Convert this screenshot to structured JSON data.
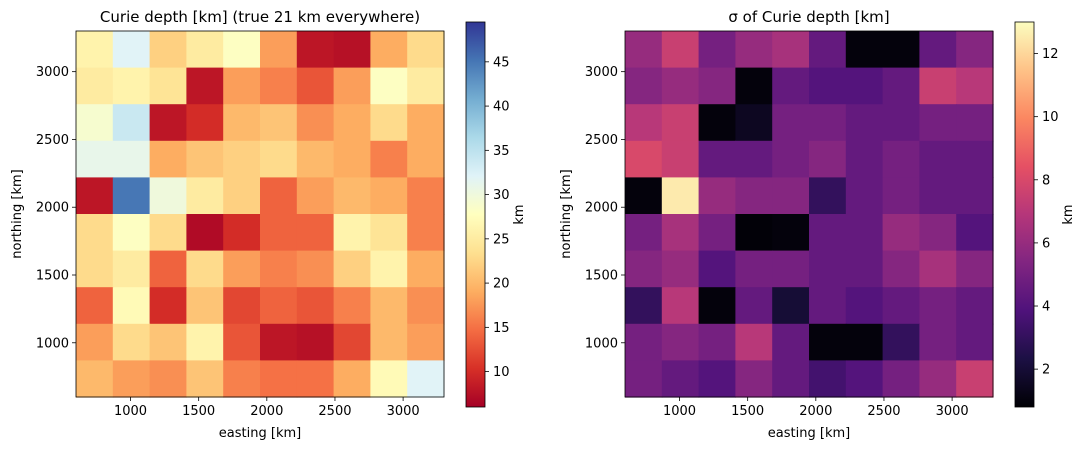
{
  "chart_data": [
    {
      "type": "heatmap",
      "title": "Curie depth [km]   (true 21 km everywhere)",
      "xlabel": "easting [km]",
      "ylabel": "northing [km]",
      "xlim": [
        600,
        3300
      ],
      "ylim": [
        600,
        3300
      ],
      "xticks": [
        1000,
        1500,
        2000,
        2500,
        3000
      ],
      "yticks": [
        1000,
        1500,
        2000,
        2500,
        3000
      ],
      "colormap": "RdYlBu",
      "colorbar": {
        "label": "km",
        "range": [
          6,
          49.5
        ],
        "ticks": [
          10,
          15,
          20,
          25,
          30,
          35,
          40,
          45
        ]
      },
      "rows_top_to_bottom": [
        [
          26,
          32,
          22,
          25,
          28,
          18,
          8,
          7.5,
          19,
          23
        ],
        [
          25,
          26,
          24,
          8,
          18,
          16,
          13,
          18,
          28,
          25
        ],
        [
          29,
          34,
          8,
          10,
          20,
          21,
          17,
          19,
          23,
          19
        ],
        [
          31,
          31,
          19,
          21,
          22,
          23,
          20,
          19,
          16,
          19
        ],
        [
          8,
          45,
          30,
          25,
          22,
          14,
          18,
          20,
          19,
          16
        ],
        [
          23,
          28,
          23,
          7,
          10,
          14,
          14,
          26,
          24,
          16
        ],
        [
          23,
          25,
          14,
          23,
          18,
          16,
          17,
          22,
          26,
          19
        ],
        [
          14,
          27,
          10,
          21,
          12,
          14,
          13,
          16,
          20,
          17
        ],
        [
          18,
          23,
          21,
          26,
          13,
          8,
          7.5,
          12,
          20,
          18
        ],
        [
          20,
          18,
          17,
          21,
          16,
          15,
          15,
          19,
          27,
          32
        ]
      ]
    },
    {
      "type": "heatmap",
      "title": "σ of Curie depth [km]",
      "xlabel": "easting [km]",
      "ylabel": "northing [km]",
      "xlim": [
        600,
        3300
      ],
      "ylim": [
        600,
        3300
      ],
      "xticks": [
        1000,
        1500,
        2000,
        2500,
        3000
      ],
      "yticks": [
        1000,
        1500,
        2000,
        2500,
        3000
      ],
      "colormap": "magma",
      "colorbar": {
        "label": "km",
        "range": [
          0.8,
          13
        ],
        "ticks": [
          2,
          4,
          6,
          8,
          10,
          12
        ]
      },
      "rows_top_to_bottom": [
        [
          6,
          7.5,
          5,
          6,
          6.5,
          4.5,
          1,
          1,
          4.5,
          5.5
        ],
        [
          5.5,
          6,
          5.5,
          1,
          4.5,
          4,
          4,
          4.5,
          7.5,
          7
        ],
        [
          7,
          7.5,
          1,
          1.5,
          5,
          5,
          4.5,
          4.5,
          5,
          5
        ],
        [
          8,
          7.5,
          4.5,
          4.5,
          5,
          5.5,
          4.5,
          5,
          4.5,
          4.5
        ],
        [
          1,
          12.5,
          6,
          5.5,
          5.5,
          3,
          4.5,
          5,
          4.5,
          4.5
        ],
        [
          5,
          6.5,
          5,
          0.9,
          1,
          4.5,
          4.5,
          6,
          5.5,
          4
        ],
        [
          5.5,
          6,
          4,
          5,
          5,
          4.5,
          4.5,
          5.5,
          6.5,
          5.5
        ],
        [
          3,
          7,
          1,
          4.5,
          2,
          4.5,
          4,
          4.5,
          5,
          4.5
        ],
        [
          5,
          5.5,
          5,
          7,
          4.5,
          1,
          1,
          3,
          5,
          4.5
        ],
        [
          5,
          4.5,
          4,
          5.5,
          4.5,
          3.5,
          4,
          5,
          6,
          7.5
        ]
      ]
    }
  ]
}
